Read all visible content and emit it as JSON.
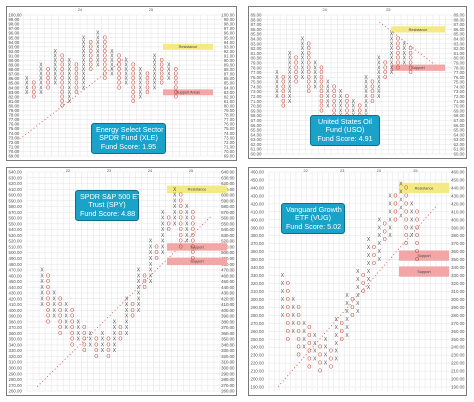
{
  "colors": {
    "x_mark": "#4a4a4a",
    "o_mark": "#c0392b",
    "grid": "#e3e3e3",
    "label_text": "#555555",
    "resistance_fill": "#f4ea83",
    "support_fill": "#f3a6a6",
    "trendline": "#d9534f",
    "fund_box": "#1aa2c9",
    "month_marker_green": "#2e8b57",
    "month_marker_blue": "#2f7fc1"
  },
  "chart_data": [
    {
      "type": "point-and-figure",
      "title_lines": [
        "Energy Select Sector",
        "SPDR Fund (XLE)",
        "Fund Score: 1.95"
      ],
      "year_labels": [
        "24",
        "25"
      ],
      "ylim": [
        69,
        100
      ],
      "ytick_values": [
        100,
        99,
        98,
        97,
        96,
        95,
        94,
        93,
        92,
        91,
        90,
        89,
        88,
        87,
        86,
        85,
        84,
        83,
        82,
        81,
        80,
        79,
        78,
        77,
        76,
        75,
        74,
        73,
        72,
        71,
        70,
        69
      ],
      "ytick_labels": [
        "100.00",
        "99.00",
        "98.00",
        "97.00",
        "96.00",
        "95.00",
        "94.00",
        "93.00",
        "92.00",
        "91.00",
        "90.00",
        "89.00",
        "88.00",
        "87.00",
        "86.00",
        "85.00",
        "84.00",
        "83.00",
        "82.00",
        "81.00",
        "80.00",
        "79.00",
        "78.00",
        "77.00",
        "76.00",
        "75.00",
        "74.00",
        "73.00",
        "72.00",
        "71.00",
        "70.00",
        "69.00"
      ],
      "columns": [
        {
          "mark": "X",
          "low": 83,
          "high": 86
        },
        {
          "mark": "O",
          "low": 82,
          "high": 85
        },
        {
          "mark": "X",
          "low": 83,
          "high": 89
        },
        {
          "mark": "O",
          "low": 84,
          "high": 88
        },
        {
          "mark": "X",
          "low": 85,
          "high": 92
        },
        {
          "mark": "O",
          "low": 80,
          "high": 91
        },
        {
          "mark": "X",
          "low": 81,
          "high": 90
        },
        {
          "mark": "O",
          "low": 83,
          "high": 89
        },
        {
          "mark": "X",
          "low": 84,
          "high": 95
        },
        {
          "mark": "O",
          "low": 88,
          "high": 94
        },
        {
          "mark": "X",
          "low": 89,
          "high": 96
        },
        {
          "mark": "O",
          "low": 86,
          "high": 95
        },
        {
          "mark": "X",
          "low": 87,
          "high": 92
        },
        {
          "mark": "O",
          "low": 84,
          "high": 91
        },
        {
          "mark": "X",
          "low": 85,
          "high": 90
        },
        {
          "mark": "O",
          "low": 81,
          "high": 89
        },
        {
          "mark": "X",
          "low": 82,
          "high": 88
        },
        {
          "mark": "O",
          "low": 83,
          "high": 87
        },
        {
          "mark": "X",
          "low": 84,
          "high": 91
        },
        {
          "mark": "O",
          "low": 85,
          "high": 90
        },
        {
          "mark": "X",
          "low": 86,
          "high": 89
        },
        {
          "mark": "O",
          "low": 82,
          "high": 88
        }
      ],
      "resistance": {
        "label": "Resistance",
        "value": 93
      },
      "support": {
        "label": "Support Areas",
        "value": 83
      }
    },
    {
      "type": "point-and-figure",
      "title_lines": [
        "United States Oil",
        "Fund (USO)",
        "Fund Score: 4.91"
      ],
      "year_labels": [
        "24",
        "25"
      ],
      "ylim": [
        60,
        89
      ],
      "ytick_values": [
        89,
        88,
        87,
        86,
        85,
        84,
        83,
        82,
        81,
        80,
        79,
        78,
        77,
        76,
        75,
        74,
        73,
        72,
        71,
        70,
        69,
        68,
        67,
        66,
        65,
        64,
        63,
        62,
        61,
        60
      ],
      "ytick_labels": [
        "89.00",
        "88.00",
        "87.00",
        "86.00",
        "85.00",
        "84.00",
        "83.00",
        "82.00",
        "81.00",
        "80.00",
        "79.00",
        "78.00",
        "77.00",
        "76.00",
        "75.00",
        "74.00",
        "73.00",
        "72.00",
        "71.00",
        "70.00",
        "69.00",
        "68.00",
        "67.00",
        "66.00",
        "65.00",
        "64.00",
        "63.00",
        "62.00",
        "61.00",
        "60.00"
      ],
      "columns": [
        {
          "mark": "X",
          "low": 72,
          "high": 77
        },
        {
          "mark": "O",
          "low": 70,
          "high": 76
        },
        {
          "mark": "X",
          "low": 71,
          "high": 81
        },
        {
          "mark": "O",
          "low": 75,
          "high": 80
        },
        {
          "mark": "X",
          "low": 76,
          "high": 84
        },
        {
          "mark": "O",
          "low": 73,
          "high": 83
        },
        {
          "mark": "X",
          "low": 74,
          "high": 79
        },
        {
          "mark": "O",
          "low": 69,
          "high": 78
        },
        {
          "mark": "X",
          "low": 70,
          "high": 75
        },
        {
          "mark": "O",
          "low": 66,
          "high": 74
        },
        {
          "mark": "X",
          "low": 67,
          "high": 73
        },
        {
          "mark": "O",
          "low": 64,
          "high": 72
        },
        {
          "mark": "X",
          "low": 65,
          "high": 71
        },
        {
          "mark": "O",
          "low": 66,
          "high": 70
        },
        {
          "mark": "X",
          "low": 67,
          "high": 76
        },
        {
          "mark": "O",
          "low": 71,
          "high": 75
        },
        {
          "mark": "X",
          "low": 72,
          "high": 80
        },
        {
          "mark": "O",
          "low": 76,
          "high": 79
        },
        {
          "mark": "X",
          "low": 77,
          "high": 85
        },
        {
          "mark": "O",
          "low": 78,
          "high": 84
        },
        {
          "mark": "X",
          "low": 79,
          "high": 83
        },
        {
          "mark": "O",
          "low": 77,
          "high": 82
        }
      ],
      "resistance": {
        "label": "Resistance",
        "value": 86
      },
      "support": {
        "label": "Support",
        "value": 78
      }
    },
    {
      "type": "point-and-figure",
      "title_lines": [
        "SPDR S&P 500 ETF",
        "Trust (SPY)",
        "Fund Score: 4.88"
      ],
      "year_labels": [
        "22",
        "23",
        "24",
        "25"
      ],
      "ylim": [
        260,
        640
      ],
      "ytick_values": [
        640,
        630,
        620,
        610,
        600,
        590,
        580,
        570,
        560,
        550,
        540,
        530,
        520,
        510,
        500,
        490,
        480,
        470,
        460,
        450,
        440,
        430,
        420,
        410,
        400,
        390,
        380,
        370,
        360,
        350,
        340,
        330,
        320,
        310,
        300,
        290,
        280,
        270,
        260
      ],
      "ytick_labels": [
        "640.00",
        "630.00",
        "620.00",
        "610.00",
        "600.00",
        "590.00",
        "580.00",
        "570.00",
        "560.00",
        "550.00",
        "540.00",
        "530.00",
        "520.00",
        "510.00",
        "500.00",
        "490.00",
        "480.00",
        "470.00",
        "460.00",
        "450.00",
        "440.00",
        "430.00",
        "420.00",
        "410.00",
        "400.00",
        "390.00",
        "380.00",
        "370.00",
        "360.00",
        "350.00",
        "340.00",
        "330.00",
        "320.00",
        "310.00",
        "300.00",
        "290.00",
        "280.00",
        "270.00",
        "260.00"
      ],
      "columns": [
        {
          "mark": "X",
          "low": 410,
          "high": 470
        },
        {
          "mark": "O",
          "low": 380,
          "high": 460
        },
        {
          "mark": "X",
          "low": 390,
          "high": 430
        },
        {
          "mark": "O",
          "low": 360,
          "high": 420
        },
        {
          "mark": "X",
          "low": 370,
          "high": 410
        },
        {
          "mark": "O",
          "low": 340,
          "high": 400
        },
        {
          "mark": "X",
          "low": 350,
          "high": 380
        },
        {
          "mark": "O",
          "low": 330,
          "high": 370
        },
        {
          "mark": "X",
          "low": 340,
          "high": 360
        },
        {
          "mark": "O",
          "low": 320,
          "high": 350
        },
        {
          "mark": "X",
          "low": 330,
          "high": 360
        },
        {
          "mark": "O",
          "low": 320,
          "high": 350
        },
        {
          "mark": "X",
          "low": 330,
          "high": 380
        },
        {
          "mark": "O",
          "low": 350,
          "high": 370
        },
        {
          "mark": "X",
          "low": 360,
          "high": 420
        },
        {
          "mark": "O",
          "low": 390,
          "high": 410
        },
        {
          "mark": "X",
          "low": 400,
          "high": 470
        },
        {
          "mark": "O",
          "low": 440,
          "high": 460
        },
        {
          "mark": "X",
          "low": 450,
          "high": 520
        },
        {
          "mark": "O",
          "low": 490,
          "high": 510
        },
        {
          "mark": "X",
          "low": 500,
          "high": 570
        },
        {
          "mark": "O",
          "low": 540,
          "high": 560
        },
        {
          "mark": "X",
          "low": 550,
          "high": 610
        },
        {
          "mark": "O",
          "low": 510,
          "high": 600
        },
        {
          "mark": "X",
          "low": 520,
          "high": 580
        },
        {
          "mark": "O",
          "low": 490,
          "high": 570
        }
      ],
      "resistance": {
        "label": "Resistance",
        "value": 610
      },
      "support": {
        "label": "Support",
        "value": 510
      },
      "support2": {
        "label": "Support",
        "value": 485
      }
    },
    {
      "type": "point-and-figure",
      "title_lines": [
        "Vanguard Growth",
        "ETF (VUG)",
        "Fund Score: 5.02"
      ],
      "year_labels": [
        "22",
        "23",
        "24",
        "25"
      ],
      "ylim": [
        185,
        460
      ],
      "ytick_values": [
        460,
        450,
        440,
        430,
        420,
        410,
        400,
        390,
        380,
        370,
        360,
        350,
        340,
        330,
        320,
        310,
        300,
        290,
        280,
        270,
        260,
        250,
        240,
        230,
        220,
        210,
        200,
        190
      ],
      "ytick_labels": [
        "460.00",
        "450.00",
        "440.00",
        "430.00",
        "420.00",
        "410.00",
        "400.00",
        "390.00",
        "380.00",
        "370.00",
        "360.00",
        "350.00",
        "340.00",
        "330.00",
        "320.00",
        "310.00",
        "300.00",
        "290.00",
        "280.00",
        "270.00",
        "260.00",
        "250.00",
        "240.00",
        "230.00",
        "220.00",
        "210.00",
        "200.00",
        "190.00"
      ],
      "columns": [
        {
          "mark": "X",
          "low": 280,
          "high": 330
        },
        {
          "mark": "O",
          "low": 250,
          "high": 320
        },
        {
          "mark": "X",
          "low": 260,
          "high": 300
        },
        {
          "mark": "O",
          "low": 230,
          "high": 290
        },
        {
          "mark": "X",
          "low": 240,
          "high": 270
        },
        {
          "mark": "O",
          "low": 215,
          "high": 260
        },
        {
          "mark": "X",
          "low": 225,
          "high": 250
        },
        {
          "mark": "O",
          "low": 210,
          "high": 240
        },
        {
          "mark": "X",
          "low": 220,
          "high": 245
        },
        {
          "mark": "O",
          "low": 215,
          "high": 235
        },
        {
          "mark": "X",
          "low": 225,
          "high": 270
        },
        {
          "mark": "O",
          "low": 250,
          "high": 265
        },
        {
          "mark": "X",
          "low": 255,
          "high": 300
        },
        {
          "mark": "O",
          "low": 280,
          "high": 295
        },
        {
          "mark": "X",
          "low": 285,
          "high": 330
        },
        {
          "mark": "O",
          "low": 310,
          "high": 325
        },
        {
          "mark": "X",
          "low": 315,
          "high": 370
        },
        {
          "mark": "O",
          "low": 345,
          "high": 365
        },
        {
          "mark": "X",
          "low": 350,
          "high": 400
        },
        {
          "mark": "O",
          "low": 375,
          "high": 395
        },
        {
          "mark": "X",
          "low": 380,
          "high": 430
        },
        {
          "mark": "O",
          "low": 400,
          "high": 425
        },
        {
          "mark": "X",
          "low": 405,
          "high": 440
        },
        {
          "mark": "O",
          "low": 370,
          "high": 435
        },
        {
          "mark": "X",
          "low": 380,
          "high": 420
        },
        {
          "mark": "O",
          "low": 350,
          "high": 410
        }
      ],
      "resistance": {
        "label": "Resistance",
        "value": 440
      },
      "support": {
        "label": "Support",
        "value": 355
      },
      "support2": {
        "label": "Support",
        "value": 335
      }
    }
  ]
}
